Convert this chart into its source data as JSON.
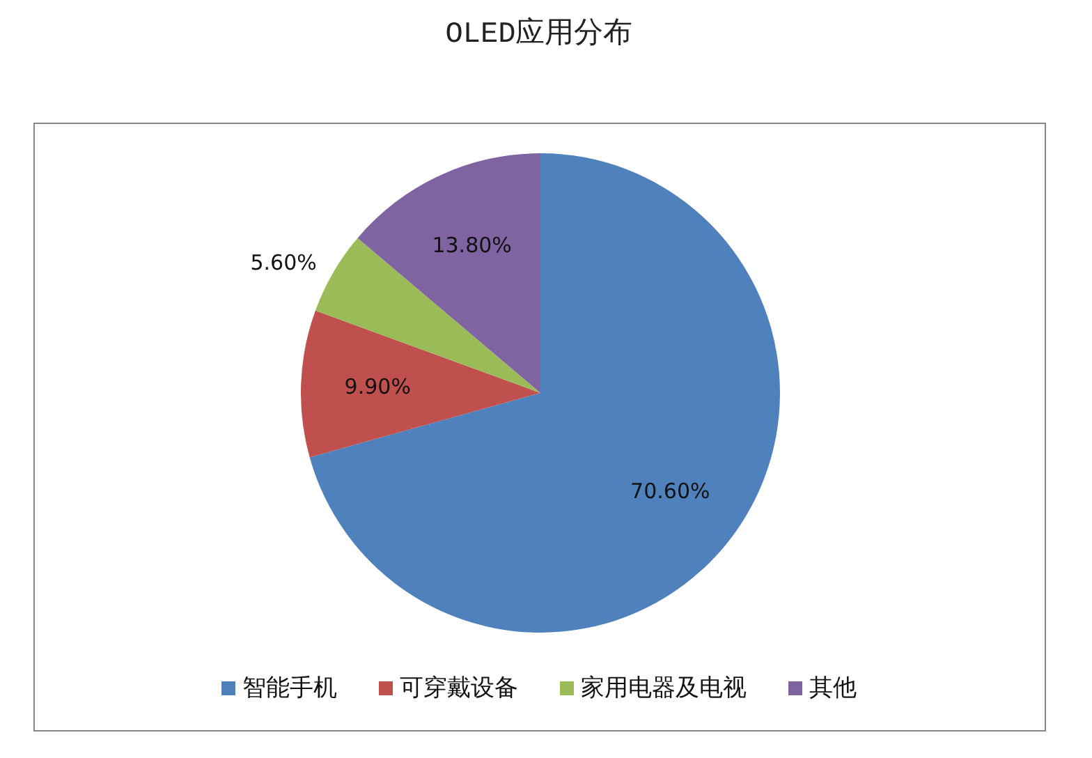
{
  "chart_data": {
    "type": "pie",
    "title": "OLED应用分布",
    "categories": [
      "智能手机",
      "可穿戴设备",
      "家用电器及电视",
      "其他"
    ],
    "values": [
      70.6,
      9.9,
      5.6,
      13.8
    ],
    "colors": [
      "#4f81bd",
      "#c0504d",
      "#9bbb59",
      "#8064a2"
    ],
    "value_labels": [
      "70.60%",
      "9.90%",
      "5.60%",
      "13.80%"
    ],
    "legend": "bottom"
  }
}
